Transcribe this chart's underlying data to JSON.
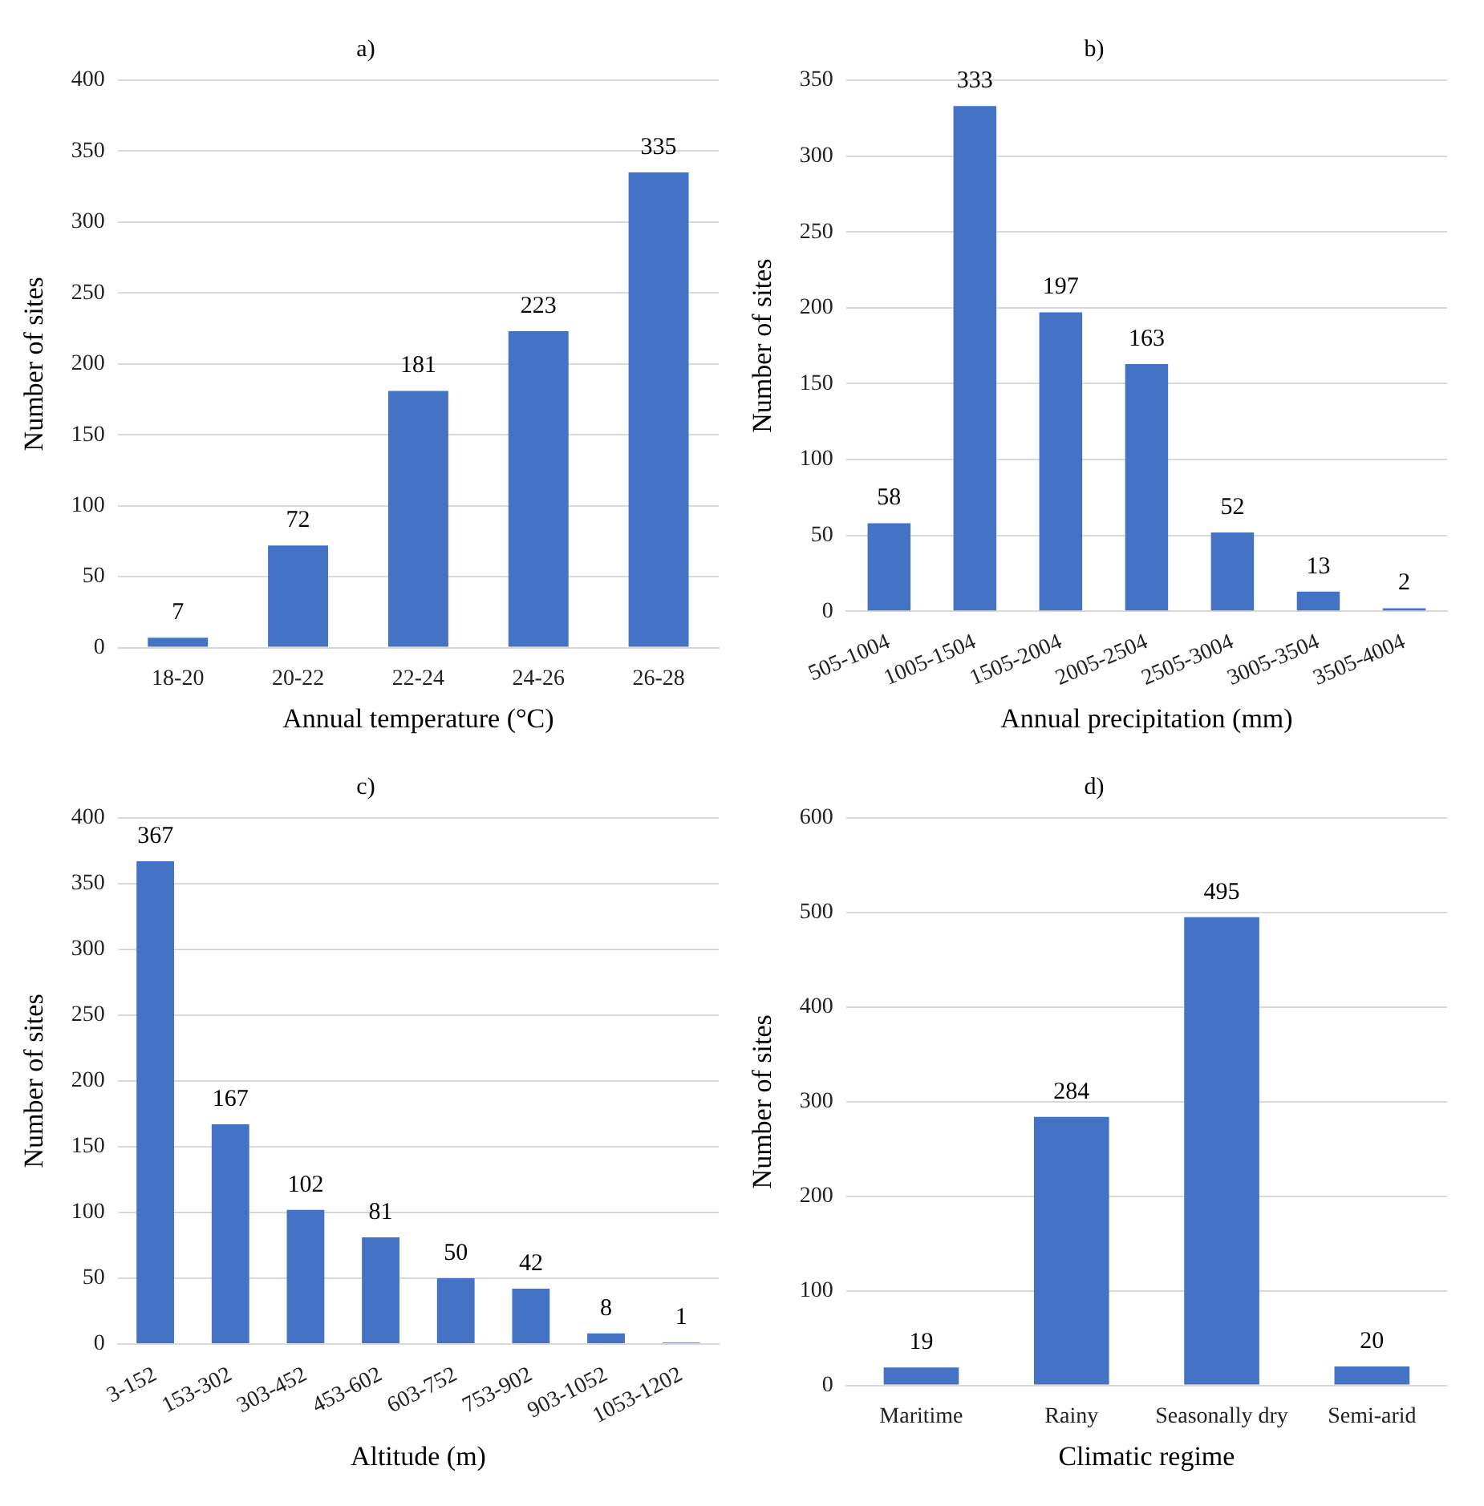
{
  "chart_data": [
    {
      "type": "bar",
      "title": "a)",
      "xlabel": "Annual temperature (°C)",
      "ylabel": "Number of sites",
      "categories": [
        "18-20",
        "20-22",
        "22-24",
        "24-26",
        "26-28"
      ],
      "values": [
        7,
        72,
        181,
        223,
        335
      ],
      "color": "#4472c4",
      "ylim": [
        0,
        400
      ],
      "yticks": [
        0,
        50,
        100,
        150,
        200,
        250,
        300,
        350,
        400
      ],
      "grid": "y",
      "data_labels": true
    },
    {
      "type": "bar",
      "title": "b)",
      "xlabel": "Annual precipitation (mm)",
      "ylabel": "Number of sites",
      "categories": [
        "505-1004",
        "1005-1504",
        "1505-2004",
        "2005-2504",
        "2505-3004",
        "3005-3504",
        "3505-4004"
      ],
      "values": [
        58,
        333,
        197,
        163,
        52,
        13,
        2
      ],
      "color": "#4472c4",
      "ylim": [
        0,
        350
      ],
      "yticks": [
        0,
        50,
        100,
        150,
        200,
        250,
        300,
        350
      ],
      "grid": "y",
      "data_labels": true
    },
    {
      "type": "bar",
      "title": "c)",
      "xlabel": "Altitude (m)",
      "ylabel": "Number of sites",
      "categories": [
        "3-152",
        "153-302",
        "303-452",
        "453-602",
        "603-752",
        "753-902",
        "903-1052",
        "1053-1202"
      ],
      "values": [
        367,
        167,
        102,
        81,
        50,
        42,
        8,
        1
      ],
      "color": "#4472c4",
      "ylim": [
        0,
        400
      ],
      "yticks": [
        0,
        50,
        100,
        150,
        200,
        250,
        300,
        350,
        400
      ],
      "grid": "y",
      "data_labels": true
    },
    {
      "type": "bar",
      "title": "d)",
      "xlabel": "Climatic regime",
      "ylabel": "Number of sites",
      "categories": [
        "Maritime",
        "Rainy",
        "Seasonally dry",
        "Semi-arid"
      ],
      "values": [
        19,
        284,
        495,
        20
      ],
      "color": "#4472c4",
      "ylim": [
        0,
        600
      ],
      "yticks": [
        0,
        100,
        200,
        300,
        400,
        500,
        600
      ],
      "grid": "y",
      "data_labels": true
    }
  ]
}
